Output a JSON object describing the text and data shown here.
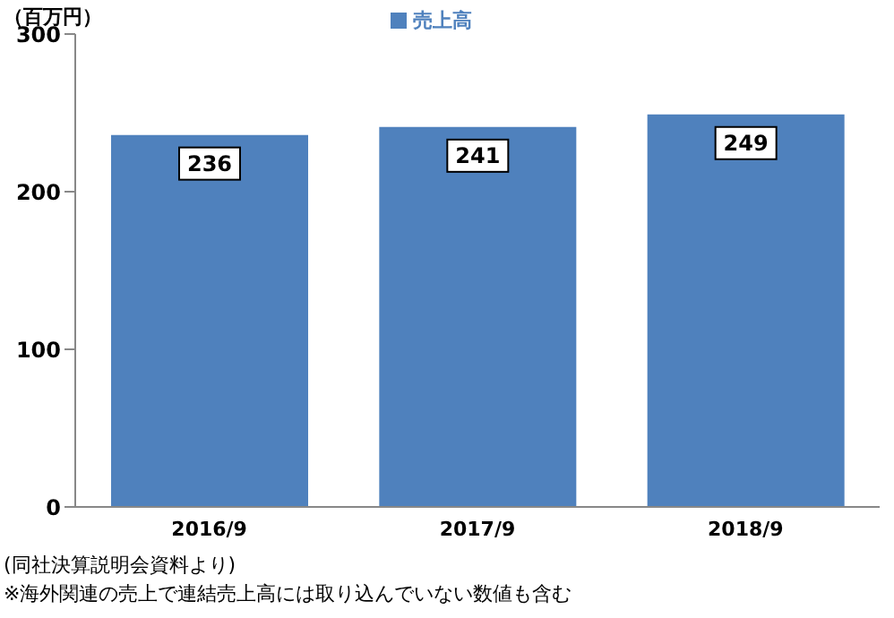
{
  "chart_data": {
    "type": "bar",
    "ylabel": "（百万円）",
    "categories": [
      "2016/9",
      "2017/9",
      "2018/9"
    ],
    "series": [
      {
        "name": "売上高",
        "color": "#4f81bd",
        "values": [
          236,
          241,
          249
        ]
      }
    ],
    "ylim": [
      0,
      300
    ],
    "yticks": [
      0,
      100,
      200,
      300
    ],
    "grid": false,
    "legend": "top",
    "data_labels": true,
    "annotations": [
      "(同社決算説明会資料より)",
      "※海外関連の売上で連結売上高には取り込んでいない数値も含む"
    ]
  }
}
